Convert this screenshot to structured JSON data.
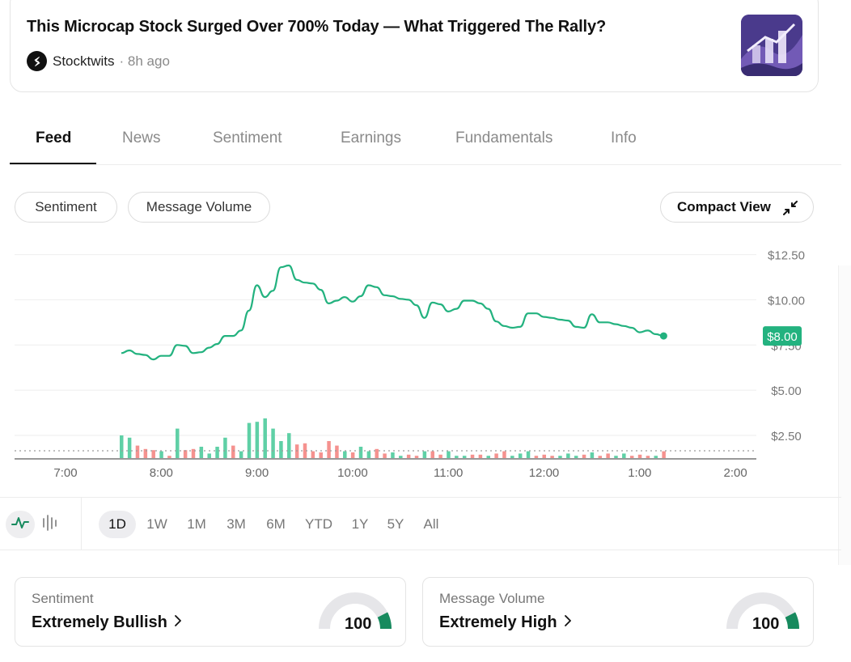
{
  "news": {
    "title": "This Microcap Stock Surged Over 700% Today — What Triggered The Rally?",
    "source": "Stocktwits",
    "time": "8h ago"
  },
  "tabs": [
    {
      "label": "Feed",
      "active": true
    },
    {
      "label": "News",
      "active": false
    },
    {
      "label": "Sentiment",
      "active": false
    },
    {
      "label": "Earnings",
      "active": false
    },
    {
      "label": "Fundamentals",
      "active": false
    },
    {
      "label": "Info",
      "active": false
    }
  ],
  "chart_controls": {
    "sentiment_label": "Sentiment",
    "message_volume_label": "Message Volume",
    "compact_view_label": "Compact View"
  },
  "chart_data": {
    "type": "line",
    "x_tick_labels": [
      "7:00",
      "8:00",
      "9:00",
      "10:00",
      "11:00",
      "12:00",
      "1:00",
      "2:00"
    ],
    "y_tick_labels": [
      "$12.50",
      "$10.00",
      "$7.50",
      "$5.00",
      "$2.50"
    ],
    "y_ticks": [
      12.5,
      10.0,
      7.5,
      5.0,
      2.5
    ],
    "ylim": [
      1.2,
      13.6
    ],
    "price_label": "$8.00",
    "line_color": "#23b27f",
    "bar_colors": {
      "up": "#5fd0a6",
      "down": "#f5928f"
    },
    "price_series": [
      {
        "t": "7:35",
        "y": 7.05
      },
      {
        "t": "7:40",
        "y": 7.2
      },
      {
        "t": "7:45",
        "y": 7.0
      },
      {
        "t": "7:50",
        "y": 6.95
      },
      {
        "t": "7:55",
        "y": 6.7
      },
      {
        "t": "8:00",
        "y": 6.9
      },
      {
        "t": "8:05",
        "y": 6.9
      },
      {
        "t": "8:10",
        "y": 7.5
      },
      {
        "t": "8:15",
        "y": 7.45
      },
      {
        "t": "8:20",
        "y": 7.05
      },
      {
        "t": "8:25",
        "y": 7.1
      },
      {
        "t": "8:30",
        "y": 7.35
      },
      {
        "t": "8:35",
        "y": 7.55
      },
      {
        "t": "8:40",
        "y": 8.0
      },
      {
        "t": "8:45",
        "y": 8.0
      },
      {
        "t": "8:50",
        "y": 8.3
      },
      {
        "t": "8:55",
        "y": 9.4
      },
      {
        "t": "9:00",
        "y": 10.8
      },
      {
        "t": "9:05",
        "y": 10.15
      },
      {
        "t": "9:10",
        "y": 10.5
      },
      {
        "t": "9:15",
        "y": 11.8
      },
      {
        "t": "9:20",
        "y": 11.9
      },
      {
        "t": "9:25",
        "y": 11.1
      },
      {
        "t": "9:30",
        "y": 10.95
      },
      {
        "t": "9:35",
        "y": 10.9
      },
      {
        "t": "9:40",
        "y": 10.55
      },
      {
        "t": "9:45",
        "y": 9.8
      },
      {
        "t": "9:50",
        "y": 9.95
      },
      {
        "t": "9:55",
        "y": 10.15
      },
      {
        "t": "10:00",
        "y": 9.9
      },
      {
        "t": "10:05",
        "y": 10.2
      },
      {
        "t": "10:10",
        "y": 10.8
      },
      {
        "t": "10:15",
        "y": 10.7
      },
      {
        "t": "10:20",
        "y": 10.25
      },
      {
        "t": "10:25",
        "y": 10.2
      },
      {
        "t": "10:30",
        "y": 10.05
      },
      {
        "t": "10:35",
        "y": 10.0
      },
      {
        "t": "10:40",
        "y": 9.7
      },
      {
        "t": "10:45",
        "y": 9.0
      },
      {
        "t": "10:50",
        "y": 9.85
      },
      {
        "t": "10:55",
        "y": 9.75
      },
      {
        "t": "11:00",
        "y": 9.35
      },
      {
        "t": "11:05",
        "y": 9.5
      },
      {
        "t": "11:10",
        "y": 9.95
      },
      {
        "t": "11:15",
        "y": 9.95
      },
      {
        "t": "11:20",
        "y": 9.8
      },
      {
        "t": "11:25",
        "y": 9.5
      },
      {
        "t": "11:30",
        "y": 8.8
      },
      {
        "t": "11:35",
        "y": 8.55
      },
      {
        "t": "11:40",
        "y": 8.45
      },
      {
        "t": "11:45",
        "y": 8.5
      },
      {
        "t": "11:50",
        "y": 9.25
      },
      {
        "t": "11:55",
        "y": 9.25
      },
      {
        "t": "12:00",
        "y": 9.05
      },
      {
        "t": "12:05",
        "y": 9.0
      },
      {
        "t": "12:10",
        "y": 8.9
      },
      {
        "t": "12:15",
        "y": 8.85
      },
      {
        "t": "12:20",
        "y": 8.5
      },
      {
        "t": "12:25",
        "y": 8.45
      },
      {
        "t": "12:30",
        "y": 9.2
      },
      {
        "t": "12:35",
        "y": 8.75
      },
      {
        "t": "12:40",
        "y": 8.75
      },
      {
        "t": "12:45",
        "y": 8.65
      },
      {
        "t": "12:50",
        "y": 8.55
      },
      {
        "t": "12:55",
        "y": 8.45
      },
      {
        "t": "1:00",
        "y": 8.2
      },
      {
        "t": "1:05",
        "y": 8.3
      },
      {
        "t": "1:10",
        "y": 8.1
      },
      {
        "t": "1:15",
        "y": 8.0
      }
    ],
    "volume_bars": [
      {
        "t": "7:35",
        "v": 1.0,
        "dir": "up"
      },
      {
        "t": "7:40",
        "v": 0.9,
        "dir": "up"
      },
      {
        "t": "7:45",
        "v": 0.55,
        "dir": "down"
      },
      {
        "t": "7:50",
        "v": 0.4,
        "dir": "down"
      },
      {
        "t": "7:55",
        "v": 0.35,
        "dir": "down"
      },
      {
        "t": "8:00",
        "v": 0.3,
        "dir": "up"
      },
      {
        "t": "8:05",
        "v": 0.1,
        "dir": "down"
      },
      {
        "t": "8:10",
        "v": 1.3,
        "dir": "up"
      },
      {
        "t": "8:15",
        "v": 0.35,
        "dir": "down"
      },
      {
        "t": "8:20",
        "v": 0.4,
        "dir": "down"
      },
      {
        "t": "8:25",
        "v": 0.5,
        "dir": "up"
      },
      {
        "t": "8:30",
        "v": 0.2,
        "dir": "up"
      },
      {
        "t": "8:35",
        "v": 0.5,
        "dir": "up"
      },
      {
        "t": "8:40",
        "v": 0.9,
        "dir": "up"
      },
      {
        "t": "8:45",
        "v": 0.55,
        "dir": "down"
      },
      {
        "t": "8:50",
        "v": 0.3,
        "dir": "up"
      },
      {
        "t": "8:55",
        "v": 1.55,
        "dir": "up"
      },
      {
        "t": "9:00",
        "v": 1.6,
        "dir": "up"
      },
      {
        "t": "9:05",
        "v": 1.75,
        "dir": "up"
      },
      {
        "t": "9:10",
        "v": 1.3,
        "dir": "up"
      },
      {
        "t": "9:15",
        "v": 0.75,
        "dir": "up"
      },
      {
        "t": "9:20",
        "v": 1.1,
        "dir": "up"
      },
      {
        "t": "9:25",
        "v": 0.6,
        "dir": "down"
      },
      {
        "t": "9:30",
        "v": 0.65,
        "dir": "down"
      },
      {
        "t": "9:35",
        "v": 0.3,
        "dir": "down"
      },
      {
        "t": "9:40",
        "v": 0.25,
        "dir": "down"
      },
      {
        "t": "9:45",
        "v": 0.75,
        "dir": "down"
      },
      {
        "t": "9:50",
        "v": 0.55,
        "dir": "down"
      },
      {
        "t": "9:55",
        "v": 0.3,
        "dir": "up"
      },
      {
        "t": "10:00",
        "v": 0.25,
        "dir": "down"
      },
      {
        "t": "10:05",
        "v": 0.5,
        "dir": "up"
      },
      {
        "t": "10:10",
        "v": 0.3,
        "dir": "up"
      },
      {
        "t": "10:15",
        "v": 0.4,
        "dir": "down"
      },
      {
        "t": "10:20",
        "v": 0.2,
        "dir": "down"
      },
      {
        "t": "10:25",
        "v": 0.25,
        "dir": "up"
      },
      {
        "t": "10:30",
        "v": 0.1,
        "dir": "up"
      },
      {
        "t": "10:35",
        "v": 0.15,
        "dir": "down"
      },
      {
        "t": "10:40",
        "v": 0.1,
        "dir": "down"
      },
      {
        "t": "10:45",
        "v": 0.3,
        "dir": "up"
      },
      {
        "t": "10:50",
        "v": 0.3,
        "dir": "down"
      },
      {
        "t": "10:55",
        "v": 0.15,
        "dir": "down"
      },
      {
        "t": "11:00",
        "v": 0.3,
        "dir": "up"
      },
      {
        "t": "11:05",
        "v": 0.1,
        "dir": "up"
      },
      {
        "t": "11:10",
        "v": 0.1,
        "dir": "up"
      },
      {
        "t": "11:15",
        "v": 0.15,
        "dir": "down"
      },
      {
        "t": "11:20",
        "v": 0.15,
        "dir": "down"
      },
      {
        "t": "11:25",
        "v": 0.1,
        "dir": "up"
      },
      {
        "t": "11:30",
        "v": 0.2,
        "dir": "down"
      },
      {
        "t": "11:35",
        "v": 0.3,
        "dir": "down"
      },
      {
        "t": "11:40",
        "v": 0.1,
        "dir": "up"
      },
      {
        "t": "11:45",
        "v": 0.2,
        "dir": "up"
      },
      {
        "t": "11:50",
        "v": 0.3,
        "dir": "up"
      },
      {
        "t": "11:55",
        "v": 0.1,
        "dir": "down"
      },
      {
        "t": "12:00",
        "v": 0.15,
        "dir": "down"
      },
      {
        "t": "12:05",
        "v": 0.1,
        "dir": "down"
      },
      {
        "t": "12:10",
        "v": 0.1,
        "dir": "up"
      },
      {
        "t": "12:15",
        "v": 0.2,
        "dir": "up"
      },
      {
        "t": "12:20",
        "v": 0.1,
        "dir": "up"
      },
      {
        "t": "12:25",
        "v": 0.15,
        "dir": "down"
      },
      {
        "t": "12:30",
        "v": 0.25,
        "dir": "up"
      },
      {
        "t": "12:35",
        "v": 0.1,
        "dir": "down"
      },
      {
        "t": "12:40",
        "v": 0.2,
        "dir": "down"
      },
      {
        "t": "12:45",
        "v": 0.1,
        "dir": "up"
      },
      {
        "t": "12:50",
        "v": 0.2,
        "dir": "up"
      },
      {
        "t": "12:55",
        "v": 0.1,
        "dir": "down"
      },
      {
        "t": "1:00",
        "v": 0.15,
        "dir": "down"
      },
      {
        "t": "1:05",
        "v": 0.1,
        "dir": "down"
      },
      {
        "t": "1:10",
        "v": 0.1,
        "dir": "up"
      },
      {
        "t": "1:15",
        "v": 0.3,
        "dir": "down"
      }
    ]
  },
  "chart_types": [
    {
      "icon": "line-chart-icon",
      "active": true
    },
    {
      "icon": "candlestick-chart-icon",
      "active": false
    }
  ],
  "ranges": [
    {
      "label": "1D",
      "active": true
    },
    {
      "label": "1W",
      "active": false
    },
    {
      "label": "1M",
      "active": false
    },
    {
      "label": "3M",
      "active": false
    },
    {
      "label": "6M",
      "active": false
    },
    {
      "label": "YTD",
      "active": false
    },
    {
      "label": "1Y",
      "active": false
    },
    {
      "label": "5Y",
      "active": false
    },
    {
      "label": "All",
      "active": false
    }
  ],
  "gauges": [
    {
      "label": "Sentiment",
      "value": "Extremely Bullish",
      "score": "100",
      "score_value": 100,
      "color": "#178a5e"
    },
    {
      "label": "Message Volume",
      "value": "Extremely High",
      "score": "100",
      "score_value": 100,
      "color": "#178a5e"
    }
  ]
}
